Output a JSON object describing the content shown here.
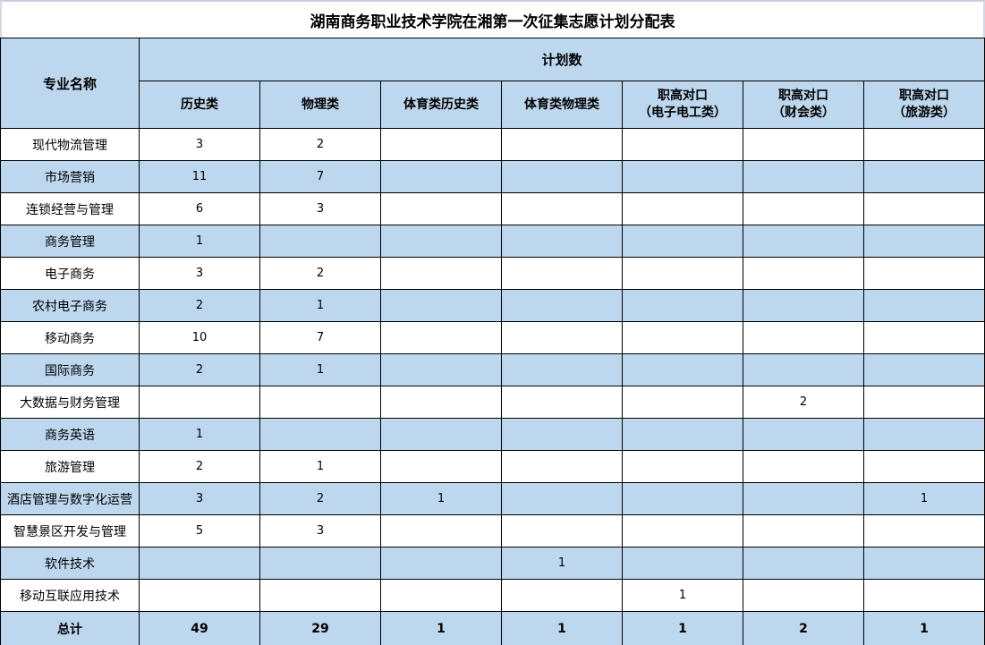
{
  "title": "湖南商务职业技术学院在湘第一次征集志愿计划分配表",
  "colors": {
    "row_highlight": "#BDD7EE",
    "grid_border": "#000000",
    "outer_frame": "#c7cedf"
  },
  "table": {
    "corner_header": "专业名称",
    "group_header": "计划数",
    "columns": [
      "历史类",
      "物理类",
      "体育类历史类",
      "体育类物理类",
      "职高对口\n（电子电工类）",
      "职高对口\n（财会类）",
      "职高对口\n（旅游类）"
    ],
    "rows": [
      {
        "major": "现代物流管理",
        "values": [
          "3",
          "2",
          "",
          "",
          "",
          "",
          ""
        ]
      },
      {
        "major": "市场营销",
        "values": [
          "11",
          "7",
          "",
          "",
          "",
          "",
          ""
        ]
      },
      {
        "major": "连锁经营与管理",
        "values": [
          "6",
          "3",
          "",
          "",
          "",
          "",
          ""
        ]
      },
      {
        "major": "商务管理",
        "values": [
          "1",
          "",
          "",
          "",
          "",
          "",
          ""
        ]
      },
      {
        "major": "电子商务",
        "values": [
          "3",
          "2",
          "",
          "",
          "",
          "",
          ""
        ]
      },
      {
        "major": "农村电子商务",
        "values": [
          "2",
          "1",
          "",
          "",
          "",
          "",
          ""
        ]
      },
      {
        "major": "移动商务",
        "values": [
          "10",
          "7",
          "",
          "",
          "",
          "",
          ""
        ]
      },
      {
        "major": "国际商务",
        "values": [
          "2",
          "1",
          "",
          "",
          "",
          "",
          ""
        ]
      },
      {
        "major": "大数据与财务管理",
        "values": [
          "",
          "",
          "",
          "",
          "",
          "2",
          ""
        ]
      },
      {
        "major": "商务英语",
        "values": [
          "1",
          "",
          "",
          "",
          "",
          "",
          ""
        ]
      },
      {
        "major": "旅游管理",
        "values": [
          "2",
          "1",
          "",
          "",
          "",
          "",
          ""
        ]
      },
      {
        "major": "酒店管理与数字化运营",
        "values": [
          "3",
          "2",
          "1",
          "",
          "",
          "",
          "1"
        ]
      },
      {
        "major": "智慧景区开发与管理",
        "values": [
          "5",
          "3",
          "",
          "",
          "",
          "",
          ""
        ]
      },
      {
        "major": "软件技术",
        "values": [
          "",
          "",
          "",
          "1",
          "",
          "",
          ""
        ]
      },
      {
        "major": "移动互联应用技术",
        "values": [
          "",
          "",
          "",
          "",
          "1",
          "",
          ""
        ]
      }
    ],
    "total": {
      "label": "总计",
      "values": [
        "49",
        "29",
        "1",
        "1",
        "1",
        "2",
        "1"
      ]
    }
  }
}
